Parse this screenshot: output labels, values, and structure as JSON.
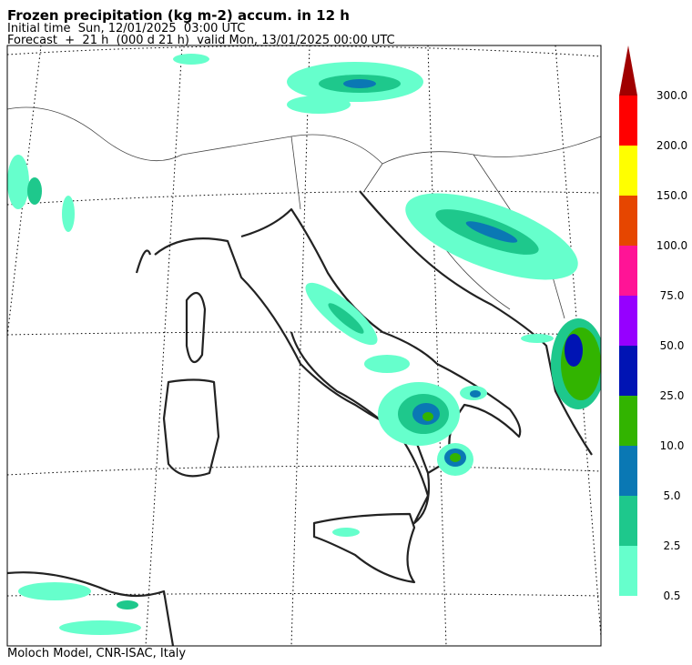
{
  "header": {
    "title": "Frozen precipitation (kg m-2) accum. in 12 h",
    "initial_time": "Initial time  Sun, 12/01/2025  03:00 UTC",
    "forecast": "Forecast  +  21 h  (000 d 21 h)  valid Mon, 13/01/2025 00:00 UTC"
  },
  "colorbar": {
    "levels": [
      "0.5",
      "2.5",
      "5.0",
      "10.0",
      "25.0",
      "50.0",
      "75.0",
      "100.0",
      "150.0",
      "200.0",
      "300.0"
    ],
    "colors": [
      "#66ffcc",
      "#1ec88c",
      "#0a78b4",
      "#32b400",
      "#0014b4",
      "#9600ff",
      "#ff1496",
      "#e64600",
      "#ffff00",
      "#ff0000"
    ],
    "extend_color": "#a00000"
  },
  "footer": "Moloch Model, CNR-ISAC, Italy"
}
